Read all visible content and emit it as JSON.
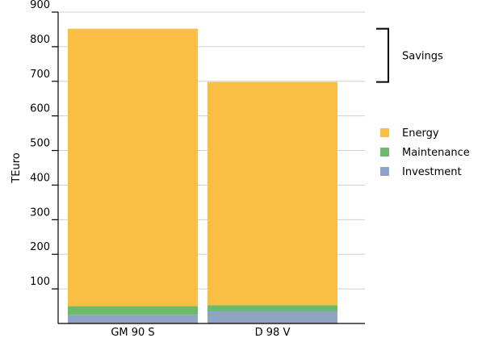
{
  "chart_data": {
    "type": "bar",
    "stacked": true,
    "categories": [
      "GM 90 S",
      "D 98 V"
    ],
    "series": [
      {
        "name": "Investment",
        "color": "#8fa3c6",
        "values": [
          25,
          35
        ]
      },
      {
        "name": "Maintenance",
        "color": "#6dba6a",
        "values": [
          25,
          18
        ]
      },
      {
        "name": "Energy",
        "color": "#fbbe44",
        "values": [
          802,
          645
        ]
      }
    ],
    "ylabel": "TEuro",
    "xlabel": "",
    "title": "",
    "yticks": [
      100,
      200,
      300,
      400,
      500,
      600,
      700,
      800,
      900
    ],
    "ylim": [
      0,
      900
    ],
    "grid": "horizontal",
    "legend": "right",
    "annotation": {
      "label": "Savings"
    }
  }
}
